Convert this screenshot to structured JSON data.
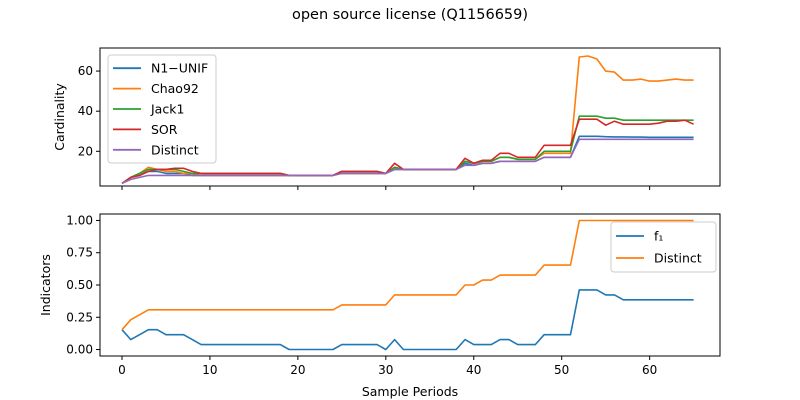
{
  "figure": {
    "title": "open source license (Q1156659)",
    "xlabel": "Sample Periods"
  },
  "chart_data": [
    {
      "type": "line",
      "ylabel": "Cardinality",
      "xlim": [
        -2.5,
        68
      ],
      "ylim": [
        2.7,
        71.5
      ],
      "xticks": [
        0,
        10,
        20,
        30,
        40,
        50,
        60
      ],
      "yticks": [
        20,
        40,
        60
      ],
      "legend_placement": "top-left",
      "grid": false,
      "series": [
        {
          "name": "N1−UNIF",
          "color": "#1f77b4",
          "x": [
            0,
            1,
            2,
            3,
            4,
            5,
            6,
            7,
            8,
            9,
            10,
            11,
            12,
            13,
            14,
            15,
            16,
            17,
            18,
            19,
            20,
            21,
            22,
            23,
            24,
            25,
            26,
            27,
            28,
            29,
            30,
            31,
            32,
            33,
            34,
            35,
            36,
            37,
            38,
            39,
            40,
            41,
            42,
            43,
            44,
            45,
            46,
            47,
            48,
            49,
            50,
            51,
            52,
            53,
            54,
            55,
            56,
            57,
            58,
            59,
            60,
            61,
            62,
            63,
            64,
            65
          ],
          "values": [
            4,
            7,
            8,
            10,
            10,
            9,
            9,
            9,
            8,
            8,
            8,
            8,
            8,
            8,
            8,
            8,
            8,
            8,
            8,
            8,
            8,
            8,
            8,
            8,
            8,
            9,
            9,
            9,
            9,
            9,
            9,
            11,
            11,
            11,
            11,
            11,
            11,
            11,
            11,
            14,
            13,
            14,
            14,
            15,
            15,
            15,
            15,
            15,
            17,
            17,
            17,
            17,
            27.5,
            27.5,
            27.5,
            27.3,
            27.2,
            27.2,
            27.1,
            27.1,
            27.0,
            27.0,
            27.0,
            27.0,
            27.0,
            27.0
          ]
        },
        {
          "name": "Chao92",
          "color": "#ff7f0e",
          "x": [
            0,
            1,
            2,
            3,
            4,
            5,
            6,
            7,
            8,
            9,
            10,
            11,
            12,
            13,
            14,
            15,
            16,
            17,
            18,
            19,
            20,
            21,
            22,
            23,
            24,
            25,
            26,
            27,
            28,
            29,
            30,
            31,
            32,
            33,
            34,
            35,
            36,
            37,
            38,
            39,
            40,
            41,
            42,
            43,
            44,
            45,
            46,
            47,
            48,
            49,
            50,
            51,
            52,
            53,
            54,
            55,
            56,
            57,
            58,
            59,
            60,
            61,
            62,
            63,
            64,
            65
          ],
          "values": [
            4,
            7,
            9,
            12,
            11,
            10,
            10,
            9,
            9,
            8,
            8,
            8,
            8,
            8,
            8,
            8,
            8,
            8,
            8,
            8,
            8,
            8,
            8,
            8,
            8,
            9,
            9,
            9,
            9,
            9,
            9,
            12,
            11,
            11,
            11,
            11,
            11,
            11,
            11,
            15,
            14,
            15,
            15,
            17,
            17,
            16,
            16,
            16,
            19,
            19,
            19,
            19,
            67,
            67.5,
            66,
            60,
            59.5,
            55.5,
            55.5,
            56,
            55,
            55,
            55.5,
            56,
            55.5,
            55.5
          ]
        },
        {
          "name": "Jack1",
          "color": "#2ca02c",
          "x": [
            0,
            1,
            2,
            3,
            4,
            5,
            6,
            7,
            8,
            9,
            10,
            11,
            12,
            13,
            14,
            15,
            16,
            17,
            18,
            19,
            20,
            21,
            22,
            23,
            24,
            25,
            26,
            27,
            28,
            29,
            30,
            31,
            32,
            33,
            34,
            35,
            36,
            37,
            38,
            39,
            40,
            41,
            42,
            43,
            44,
            45,
            46,
            47,
            48,
            49,
            50,
            51,
            52,
            53,
            54,
            55,
            56,
            57,
            58,
            59,
            60,
            61,
            62,
            63,
            64,
            65
          ],
          "values": [
            4,
            7,
            9,
            11,
            11,
            11,
            11,
            10,
            9,
            9,
            9,
            9,
            9,
            9,
            9,
            9,
            9,
            9,
            9,
            8,
            8,
            8,
            8,
            8,
            8,
            10,
            10,
            10,
            10,
            10,
            9,
            12,
            11,
            11,
            11,
            11,
            11,
            11,
            11,
            15,
            14,
            15,
            15,
            17,
            17,
            16,
            16,
            16,
            20,
            20,
            20,
            20,
            37.5,
            37.5,
            37.5,
            36.5,
            36.5,
            35.5,
            35.5,
            35.5,
            35.5,
            35.5,
            35.5,
            35.5,
            35.5,
            35.5
          ]
        },
        {
          "name": "SOR",
          "color": "#d62728",
          "x": [
            0,
            1,
            2,
            3,
            4,
            5,
            6,
            7,
            8,
            9,
            10,
            11,
            12,
            13,
            14,
            15,
            16,
            17,
            18,
            19,
            20,
            21,
            22,
            23,
            24,
            25,
            26,
            27,
            28,
            29,
            30,
            31,
            32,
            33,
            34,
            35,
            36,
            37,
            38,
            39,
            40,
            41,
            42,
            43,
            44,
            45,
            46,
            47,
            48,
            49,
            50,
            51,
            52,
            53,
            54,
            55,
            56,
            57,
            58,
            59,
            60,
            61,
            62,
            63,
            64,
            65
          ],
          "values": [
            4,
            7,
            8,
            10,
            11,
            11,
            11.5,
            11.5,
            10,
            9,
            9,
            9,
            9,
            9,
            9,
            9,
            9,
            9,
            9,
            8,
            8,
            8,
            8,
            8,
            8,
            10,
            10,
            10,
            10,
            10,
            9,
            14,
            11,
            11,
            11,
            11,
            11,
            11,
            11,
            16.5,
            14,
            15.5,
            15.5,
            19,
            19,
            17,
            17,
            17,
            23,
            23,
            23,
            23,
            36,
            36,
            36,
            33,
            35,
            33.5,
            33.5,
            33.5,
            33.5,
            34,
            35,
            35,
            35.5,
            33.5
          ]
        },
        {
          "name": "Distinct",
          "color": "#9467bd",
          "x": [
            0,
            1,
            2,
            3,
            4,
            5,
            6,
            7,
            8,
            9,
            10,
            11,
            12,
            13,
            14,
            15,
            16,
            17,
            18,
            19,
            20,
            21,
            22,
            23,
            24,
            25,
            26,
            27,
            28,
            29,
            30,
            31,
            32,
            33,
            34,
            35,
            36,
            37,
            38,
            39,
            40,
            41,
            42,
            43,
            44,
            45,
            46,
            47,
            48,
            49,
            50,
            51,
            52,
            53,
            54,
            55,
            56,
            57,
            58,
            59,
            60,
            61,
            62,
            63,
            64,
            65
          ],
          "values": [
            4,
            6,
            7,
            8,
            8,
            8,
            8,
            8,
            8,
            8,
            8,
            8,
            8,
            8,
            8,
            8,
            8,
            8,
            8,
            8,
            8,
            8,
            8,
            8,
            8,
            9,
            9,
            9,
            9,
            9,
            9,
            11,
            11,
            11,
            11,
            11,
            11,
            11,
            11,
            13,
            13,
            14,
            14,
            15,
            15,
            15,
            15,
            15,
            17,
            17,
            17,
            17,
            26,
            26,
            26,
            26,
            26,
            26,
            26,
            26,
            26,
            26,
            26,
            26,
            26,
            26
          ]
        }
      ]
    },
    {
      "type": "line",
      "ylabel": "Indicators",
      "xlim": [
        -2.5,
        68
      ],
      "ylim": [
        -0.05,
        1.05
      ],
      "xticks": [
        0,
        10,
        20,
        30,
        40,
        50,
        60
      ],
      "yticks": [
        0.0,
        0.25,
        0.5,
        0.75,
        1.0
      ],
      "ytick_labels": [
        "0.00",
        "0.25",
        "0.50",
        "0.75",
        "1.00"
      ],
      "xtick_labels": [
        "0",
        "10",
        "20",
        "30",
        "40",
        "50",
        "60"
      ],
      "legend_placement": "top-right",
      "grid": false,
      "series": [
        {
          "name": "f₁",
          "color": "#1f77b4",
          "x": [
            0,
            1,
            2,
            3,
            4,
            5,
            6,
            7,
            8,
            9,
            10,
            11,
            12,
            13,
            14,
            15,
            16,
            17,
            18,
            19,
            20,
            21,
            22,
            23,
            24,
            25,
            26,
            27,
            28,
            29,
            30,
            31,
            32,
            33,
            34,
            35,
            36,
            37,
            38,
            39,
            40,
            41,
            42,
            43,
            44,
            45,
            46,
            47,
            48,
            49,
            50,
            51,
            52,
            53,
            54,
            55,
            56,
            57,
            58,
            59,
            60,
            61,
            62,
            63,
            64,
            65
          ],
          "values": [
            0.154,
            0.077,
            0.115,
            0.154,
            0.154,
            0.115,
            0.115,
            0.115,
            0.077,
            0.038,
            0.038,
            0.038,
            0.038,
            0.038,
            0.038,
            0.038,
            0.038,
            0.038,
            0.038,
            0.0,
            0.0,
            0.0,
            0.0,
            0.0,
            0.0,
            0.038,
            0.038,
            0.038,
            0.038,
            0.038,
            0.0,
            0.077,
            0.0,
            0.0,
            0.0,
            0.0,
            0.0,
            0.0,
            0.0,
            0.077,
            0.038,
            0.038,
            0.038,
            0.077,
            0.077,
            0.038,
            0.038,
            0.038,
            0.115,
            0.115,
            0.115,
            0.115,
            0.462,
            0.462,
            0.462,
            0.423,
            0.423,
            0.385,
            0.385,
            0.385,
            0.385,
            0.385,
            0.385,
            0.385,
            0.385,
            0.385
          ]
        },
        {
          "name": "Distinct",
          "color": "#ff7f0e",
          "x": [
            0,
            1,
            2,
            3,
            4,
            5,
            6,
            7,
            8,
            9,
            10,
            11,
            12,
            13,
            14,
            15,
            16,
            17,
            18,
            19,
            20,
            21,
            22,
            23,
            24,
            25,
            26,
            27,
            28,
            29,
            30,
            31,
            32,
            33,
            34,
            35,
            36,
            37,
            38,
            39,
            40,
            41,
            42,
            43,
            44,
            45,
            46,
            47,
            48,
            49,
            50,
            51,
            52,
            53,
            54,
            55,
            56,
            57,
            58,
            59,
            60,
            61,
            62,
            63,
            64,
            65
          ],
          "values": [
            0.154,
            0.231,
            0.269,
            0.308,
            0.308,
            0.308,
            0.308,
            0.308,
            0.308,
            0.308,
            0.308,
            0.308,
            0.308,
            0.308,
            0.308,
            0.308,
            0.308,
            0.308,
            0.308,
            0.308,
            0.308,
            0.308,
            0.308,
            0.308,
            0.308,
            0.346,
            0.346,
            0.346,
            0.346,
            0.346,
            0.346,
            0.423,
            0.423,
            0.423,
            0.423,
            0.423,
            0.423,
            0.423,
            0.423,
            0.5,
            0.5,
            0.538,
            0.538,
            0.577,
            0.577,
            0.577,
            0.577,
            0.577,
            0.654,
            0.654,
            0.654,
            0.654,
            1.0,
            1.0,
            1.0,
            1.0,
            1.0,
            1.0,
            1.0,
            1.0,
            1.0,
            1.0,
            1.0,
            1.0,
            1.0,
            1.0
          ]
        }
      ]
    }
  ]
}
